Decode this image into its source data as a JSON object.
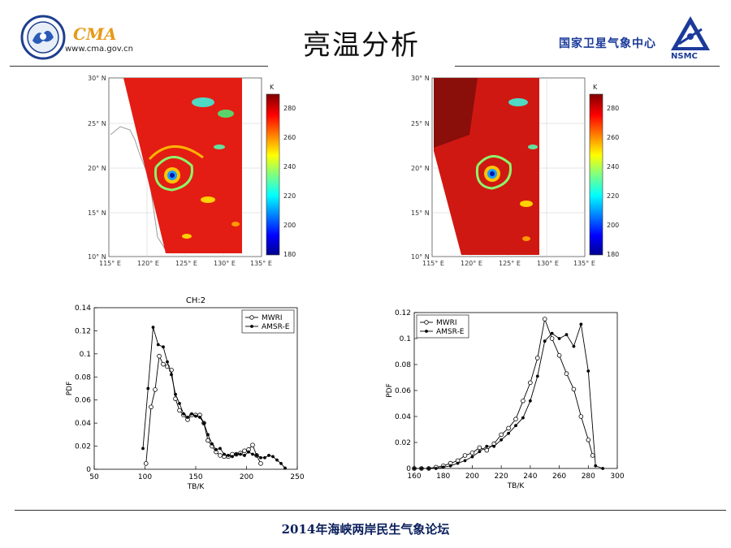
{
  "header": {
    "title": "亮温分析",
    "cma_logo_text": "CMA",
    "cma_url": "www.cma.gov.cn",
    "nsmc_cn": "国家卫星气象中心",
    "nsmc_en": "NSMC"
  },
  "footer": {
    "text": "2014年海峡两岸民生气象论坛"
  },
  "maps": [
    {
      "lat_ticks": [
        "30° N",
        "25° N",
        "20° N",
        "15° N",
        "10° N"
      ],
      "lon_ticks": [
        "115° E",
        "120° E",
        "125° E",
        "130° E",
        "135° E"
      ],
      "colorbar": {
        "unit": "K",
        "ticks": [
          "280",
          "260",
          "240",
          "220",
          "200",
          "180"
        ]
      }
    },
    {
      "lat_ticks": [
        "30° N",
        "25° N",
        "20° N",
        "15° N",
        "10° N"
      ],
      "lon_ticks": [
        "115° E",
        "120° E",
        "125° E",
        "130° E",
        "135° E"
      ],
      "colorbar": {
        "unit": "K",
        "ticks": [
          "280",
          "260",
          "240",
          "220",
          "200",
          "180"
        ]
      }
    }
  ],
  "chart_data": [
    {
      "type": "line",
      "title": "CH:2",
      "xlabel": "TB/K",
      "ylabel": "PDF",
      "xlim": [
        50,
        250
      ],
      "ylim": [
        0,
        0.14
      ],
      "xticks": [
        "50",
        "100",
        "150",
        "200",
        "250"
      ],
      "yticks": [
        "0",
        "0.02",
        "0.04",
        "0.06",
        "0.08",
        "0.1",
        "0.12",
        "0.14"
      ],
      "legend_position": "top-right",
      "series": [
        {
          "name": "MWRI",
          "marker": "open-circle",
          "x": [
            101,
            106,
            110,
            114,
            118,
            122,
            126,
            130,
            134,
            138,
            142,
            146,
            150,
            154,
            158,
            162,
            166,
            170,
            174,
            178,
            182,
            186,
            190,
            194,
            198,
            202,
            206,
            210,
            214
          ],
          "y": [
            0.005,
            0.054,
            0.069,
            0.098,
            0.091,
            0.089,
            0.086,
            0.061,
            0.051,
            0.047,
            0.043,
            0.047,
            0.047,
            0.047,
            0.04,
            0.025,
            0.02,
            0.015,
            0.012,
            0.011,
            0.011,
            0.013,
            0.013,
            0.014,
            0.016,
            0.017,
            0.021,
            0.012,
            0.005
          ]
        },
        {
          "name": "AMSR-E",
          "marker": "filled-dot",
          "x": [
            98,
            103,
            108,
            113,
            118,
            122,
            126,
            130,
            134,
            138,
            142,
            146,
            150,
            154,
            158,
            162,
            166,
            170,
            174,
            178,
            182,
            186,
            190,
            194,
            198,
            202,
            206,
            210,
            214,
            218,
            222,
            226,
            230,
            234,
            238
          ],
          "y": [
            0.018,
            0.07,
            0.123,
            0.108,
            0.106,
            0.093,
            0.082,
            0.065,
            0.057,
            0.048,
            0.045,
            0.048,
            0.046,
            0.045,
            0.04,
            0.03,
            0.022,
            0.017,
            0.018,
            0.013,
            0.012,
            0.011,
            0.013,
            0.013,
            0.012,
            0.015,
            0.013,
            0.012,
            0.01,
            0.01,
            0.012,
            0.011,
            0.008,
            0.005,
            0.001
          ]
        }
      ]
    },
    {
      "type": "line",
      "title": "",
      "xlabel": "TB/K",
      "ylabel": "PDF",
      "xlim": [
        160,
        300
      ],
      "ylim": [
        0,
        0.12
      ],
      "xticks": [
        "160",
        "180",
        "200",
        "220",
        "240",
        "260",
        "280",
        "300"
      ],
      "yticks": [
        "0",
        "0.02",
        "0.04",
        "0.06",
        "0.08",
        "0.1",
        "0.12"
      ],
      "legend_position": "top-left",
      "series": [
        {
          "name": "MWRI",
          "marker": "open-circle",
          "x": [
            160,
            165,
            170,
            175,
            180,
            185,
            190,
            195,
            200,
            205,
            210,
            215,
            220,
            225,
            230,
            235,
            240,
            245,
            250,
            255,
            260,
            265,
            270,
            275,
            280,
            283
          ],
          "y": [
            0,
            0,
            0,
            0.001,
            0.002,
            0.004,
            0.006,
            0.01,
            0.012,
            0.016,
            0.014,
            0.019,
            0.026,
            0.031,
            0.038,
            0.052,
            0.066,
            0.085,
            0.115,
            0.1,
            0.087,
            0.073,
            0.061,
            0.04,
            0.022,
            0.01
          ]
        },
        {
          "name": "AMSR-E",
          "marker": "filled-dot",
          "x": [
            160,
            165,
            170,
            175,
            180,
            185,
            190,
            195,
            200,
            205,
            210,
            215,
            220,
            225,
            230,
            235,
            240,
            245,
            250,
            255,
            260,
            265,
            270,
            275,
            280,
            285,
            290
          ],
          "y": [
            0,
            0,
            0,
            0,
            0.001,
            0.002,
            0.004,
            0.006,
            0.009,
            0.013,
            0.017,
            0.017,
            0.022,
            0.027,
            0.033,
            0.039,
            0.052,
            0.071,
            0.098,
            0.104,
            0.1,
            0.103,
            0.094,
            0.111,
            0.075,
            0.002,
            0
          ]
        }
      ]
    }
  ]
}
